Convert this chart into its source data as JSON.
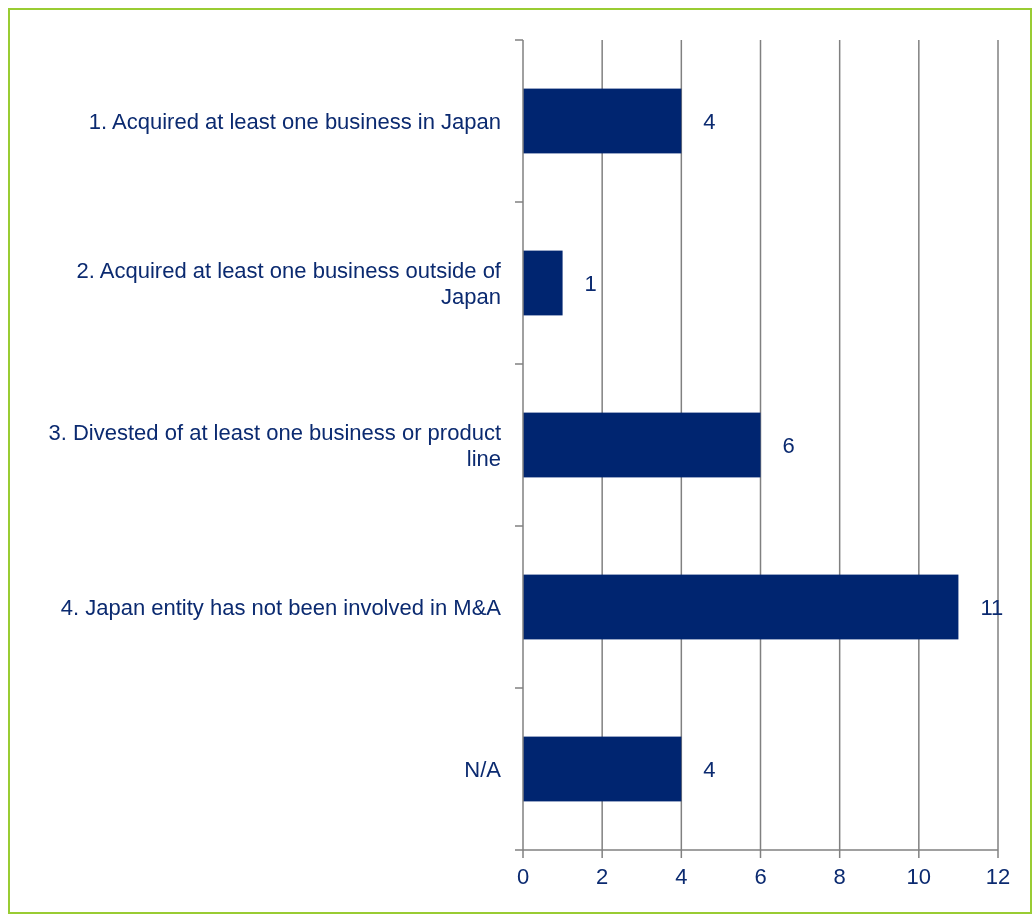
{
  "chart_data": {
    "type": "bar",
    "orientation": "horizontal",
    "categories": [
      "1. Acquired at least one business in Japan",
      "2. Acquired at least one business outside of Japan",
      "3. Divested of at least one business or product line",
      "4. Japan entity has not been involved in M&A",
      "N/A"
    ],
    "values": [
      4,
      1,
      6,
      11,
      4
    ],
    "color": "#002570",
    "xlim": [
      0,
      12
    ],
    "xticks": [
      0,
      2,
      4,
      6,
      8,
      10,
      12
    ],
    "grid": "x",
    "data_labels": true
  }
}
